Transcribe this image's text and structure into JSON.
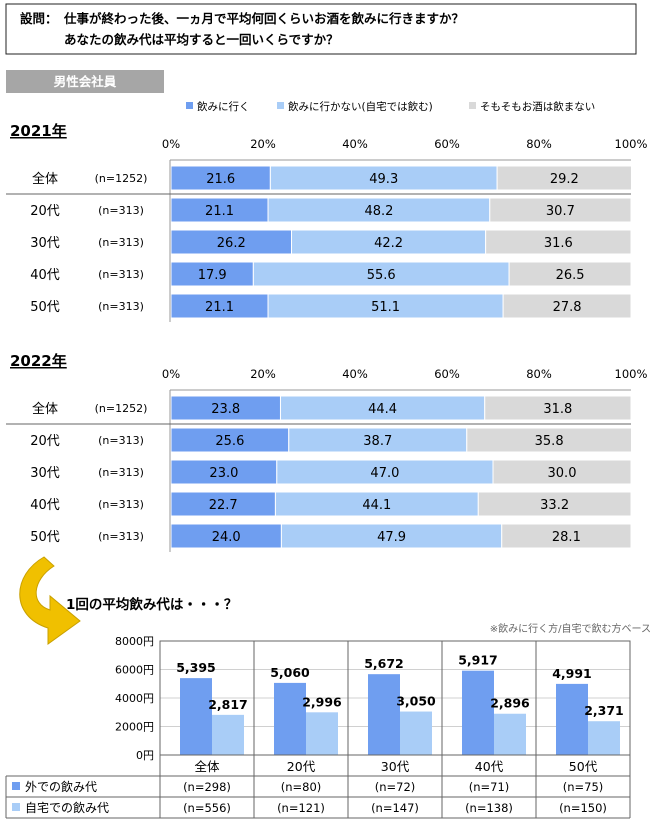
{
  "question": {
    "label": "設問：",
    "line1": "仕事が終わった後、一ヵ月で平均何回くらいお酒を飲みに行きますか？",
    "line2": "あなたの飲み代は平均すると一回いくらですか？"
  },
  "section_label": "男性会社員",
  "legend": [
    "飲みに行く",
    "飲みに行かない(自宅では飲む)",
    "そもそもお酒は飲まない"
  ],
  "colors": {
    "go": "#6f9ef0",
    "home": "#a9cdf7",
    "none": "#d9d9d9",
    "section_bg": "#a6a6a6",
    "arrow": "#f0c000"
  },
  "chart_data": [
    {
      "type": "bar",
      "stacked": true,
      "orientation": "horizontal",
      "title": "2021年",
      "xticks": [
        "0%",
        "20%",
        "40%",
        "60%",
        "80%",
        "100%"
      ],
      "xlim": [
        0,
        100
      ],
      "categories": [
        "全体",
        "20代",
        "30代",
        "40代",
        "50代"
      ],
      "n": [
        "(n=1252)",
        "(n=313)",
        "(n=313)",
        "(n=313)",
        "(n=313)"
      ],
      "series": [
        {
          "name": "飲みに行く",
          "values": [
            "21.6",
            "21.1",
            "26.2",
            "17.9",
            "21.1"
          ]
        },
        {
          "name": "飲みに行かない(自宅では飲む)",
          "values": [
            "49.3",
            "48.2",
            "42.2",
            "55.6",
            "51.1"
          ]
        },
        {
          "name": "そもそもお酒は飲まない",
          "values": [
            "29.2",
            "30.7",
            "31.6",
            "26.5",
            "27.8"
          ]
        }
      ]
    },
    {
      "type": "bar",
      "stacked": true,
      "orientation": "horizontal",
      "title": "2022年",
      "xticks": [
        "0%",
        "20%",
        "40%",
        "60%",
        "80%",
        "100%"
      ],
      "xlim": [
        0,
        100
      ],
      "categories": [
        "全体",
        "20代",
        "30代",
        "40代",
        "50代"
      ],
      "n": [
        "(n=1252)",
        "(n=313)",
        "(n=313)",
        "(n=313)",
        "(n=313)"
      ],
      "series": [
        {
          "name": "飲みに行く",
          "values": [
            "23.8",
            "25.6",
            "23.0",
            "22.7",
            "24.0"
          ]
        },
        {
          "name": "飲みに行かない(自宅では飲む)",
          "values": [
            "44.4",
            "38.7",
            "47.0",
            "44.1",
            "47.9"
          ]
        },
        {
          "name": "そもそもお酒は飲まない",
          "values": [
            "31.8",
            "35.8",
            "30.0",
            "33.2",
            "28.1"
          ]
        }
      ]
    },
    {
      "type": "bar",
      "title": "1回の平均飲み代は・・・？",
      "note": "※飲みに行く方/自宅で飲む方ベース",
      "yticks": [
        "0円",
        "2000円",
        "4000円",
        "6000円",
        "8000円"
      ],
      "ylim": [
        0,
        8000
      ],
      "categories": [
        "全体",
        "20代",
        "30代",
        "40代",
        "50代"
      ],
      "series": [
        {
          "name": "外での飲み代",
          "values": [
            5395,
            5060,
            5672,
            5917,
            4991
          ],
          "labels": [
            "5,395",
            "5,060",
            "5,672",
            "5,917",
            "4,991"
          ],
          "n": [
            "(n=298)",
            "(n=80)",
            "(n=72)",
            "(n=71)",
            "(n=75)"
          ]
        },
        {
          "name": "自宅での飲み代",
          "values": [
            2817,
            2996,
            3050,
            2896,
            2371
          ],
          "labels": [
            "2,817",
            "2,996",
            "3,050",
            "2,896",
            "2,371"
          ],
          "n": [
            "(n=556)",
            "(n=121)",
            "(n=147)",
            "(n=138)",
            "(n=150)"
          ]
        }
      ]
    }
  ]
}
